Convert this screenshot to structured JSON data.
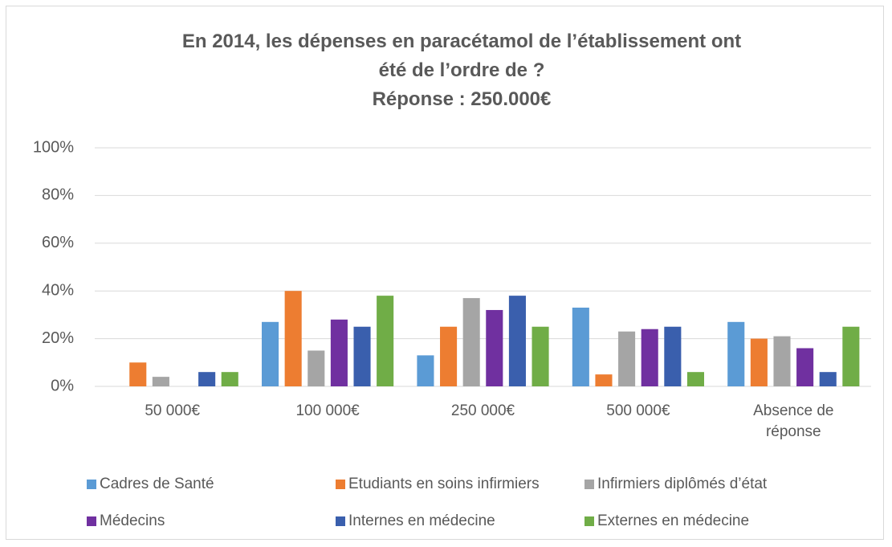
{
  "chart_data": {
    "type": "bar",
    "title": "En 2014, les dépenses en paracétamol de l’établissement ont été de l’ordre de ?",
    "subtitle": "Réponse : 250.000€",
    "categories": [
      "50 000€",
      "100 000€",
      "250 000€",
      "500 000€",
      "Absence de réponse"
    ],
    "series": [
      {
        "name": "Cadres de Santé",
        "color": "#5b9bd5",
        "values": [
          0,
          27,
          13,
          33,
          27
        ]
      },
      {
        "name": "Etudiants en soins infirmiers",
        "color": "#ed7d31",
        "values": [
          10,
          40,
          25,
          5,
          20
        ]
      },
      {
        "name": "Infirmiers diplômés d’état",
        "color": "#a5a5a5",
        "values": [
          4,
          15,
          37,
          23,
          21
        ]
      },
      {
        "name": "Médecins",
        "color": "#7030a0",
        "values": [
          0,
          28,
          32,
          24,
          16
        ]
      },
      {
        "name": "Internes en médecine",
        "color": "#3a5fad",
        "values": [
          6,
          25,
          38,
          25,
          6
        ]
      },
      {
        "name": "Externes en médecine",
        "color": "#70ad47",
        "values": [
          6,
          38,
          25,
          6,
          25
        ]
      }
    ],
    "ylim": [
      0,
      100
    ],
    "yticks": [
      {
        "value": 0,
        "label": "0%"
      },
      {
        "value": 20,
        "label": "20%"
      },
      {
        "value": 40,
        "label": "40%"
      },
      {
        "value": 60,
        "label": "60%"
      },
      {
        "value": 80,
        "label": "80%"
      },
      {
        "value": 100,
        "label": "100%"
      }
    ],
    "grid": true,
    "legend": "bottom"
  }
}
